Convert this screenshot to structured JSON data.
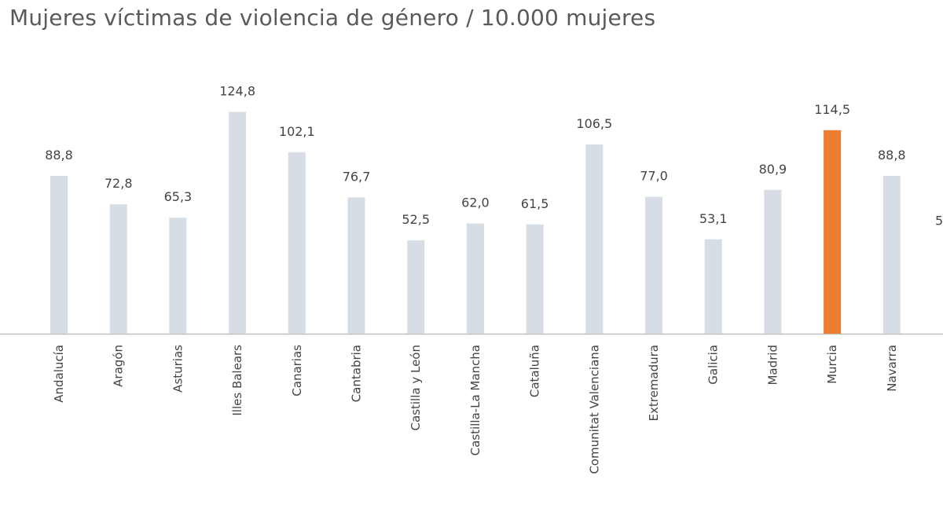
{
  "chart_data": {
    "type": "bar",
    "title": "Mujeres víctimas de violencia de género / 10.000 mujeres",
    "categories": [
      "Andalucía",
      "Aragón",
      "Asturias",
      "Illes Balears",
      "Canarias",
      "Cantabria",
      "Castilla y León",
      "Castilla-La Mancha",
      "Cataluña",
      "Comunitat Valenciana",
      "Extremadura",
      "Galicia",
      "Madrid",
      "Murcia",
      "Navarra"
    ],
    "values": [
      88.8,
      72.8,
      65.3,
      124.8,
      102.1,
      76.7,
      52.5,
      62.0,
      61.5,
      106.5,
      77.0,
      53.1,
      80.9,
      114.5,
      88.8
    ],
    "value_labels": [
      "88,8",
      "72,8",
      "65,3",
      "124,8",
      "102,1",
      "76,7",
      "52,5",
      "62,0",
      "61,5",
      "106,5",
      "77,0",
      "53,1",
      "80,9",
      "114,5",
      "88,8"
    ],
    "partial_next_value_label": "5",
    "highlight_category": "Murcia",
    "ylim": [
      0,
      140
    ],
    "grid": false,
    "legend": "none",
    "colors": {
      "bar": "#d6dde5",
      "highlight": "#ed7d31",
      "axis": "#bfbfbf",
      "text": "#444444",
      "title": "#5a5a5a"
    }
  }
}
